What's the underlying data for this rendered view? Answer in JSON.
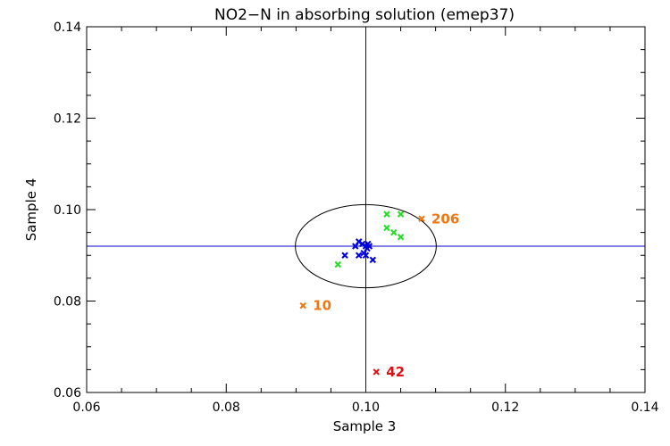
{
  "chart_data": {
    "type": "scatter",
    "title": "NO2−N in absorbing solution (emep37)",
    "xlabel": "Sample 3",
    "ylabel": "Sample 4",
    "xlim": [
      0.06,
      0.14
    ],
    "ylim": [
      0.06,
      0.14
    ],
    "xticks": [
      "0.06",
      "0.08",
      "0.10",
      "0.12",
      "0.14"
    ],
    "yticks": [
      "0.06",
      "0.08",
      "0.10",
      "0.12",
      "0.14"
    ],
    "reference_lines": {
      "x": 0.1,
      "y": 0.092
    },
    "ellipse": {
      "cx": 0.1,
      "cy": 0.092,
      "rx": 0.0101,
      "ry": 0.0091
    },
    "series": [
      {
        "name": "blue",
        "color": "#0000e0",
        "points": [
          [
            0.0985,
            0.092
          ],
          [
            0.099,
            0.093
          ],
          [
            0.0995,
            0.0925
          ],
          [
            0.1,
            0.092
          ],
          [
            0.1002,
            0.0915
          ],
          [
            0.1005,
            0.092
          ],
          [
            0.1003,
            0.0925
          ],
          [
            0.099,
            0.09
          ],
          [
            0.0997,
            0.0905
          ],
          [
            0.097,
            0.09
          ],
          [
            0.101,
            0.089
          ],
          [
            0.1,
            0.09
          ]
        ]
      },
      {
        "name": "green",
        "color": "#22dd22",
        "points": [
          [
            0.103,
            0.099
          ],
          [
            0.105,
            0.099
          ],
          [
            0.103,
            0.096
          ],
          [
            0.104,
            0.095
          ],
          [
            0.105,
            0.094
          ],
          [
            0.096,
            0.088
          ]
        ]
      },
      {
        "name": "orange",
        "color": "#ee7711",
        "points": [
          [
            0.108,
            0.098
          ],
          [
            0.091,
            0.079
          ]
        ]
      },
      {
        "name": "red",
        "color": "#dd1111",
        "points": [
          [
            0.1015,
            0.0645
          ]
        ]
      }
    ],
    "annotations": [
      {
        "text": "206",
        "x": 0.108,
        "y": 0.098,
        "color": "#ee7711"
      },
      {
        "text": "10",
        "x": 0.091,
        "y": 0.079,
        "color": "#ee7711"
      },
      {
        "text": "42",
        "x": 0.1015,
        "y": 0.0645,
        "color": "#dd1111"
      }
    ],
    "line_color": "#0000cc"
  }
}
